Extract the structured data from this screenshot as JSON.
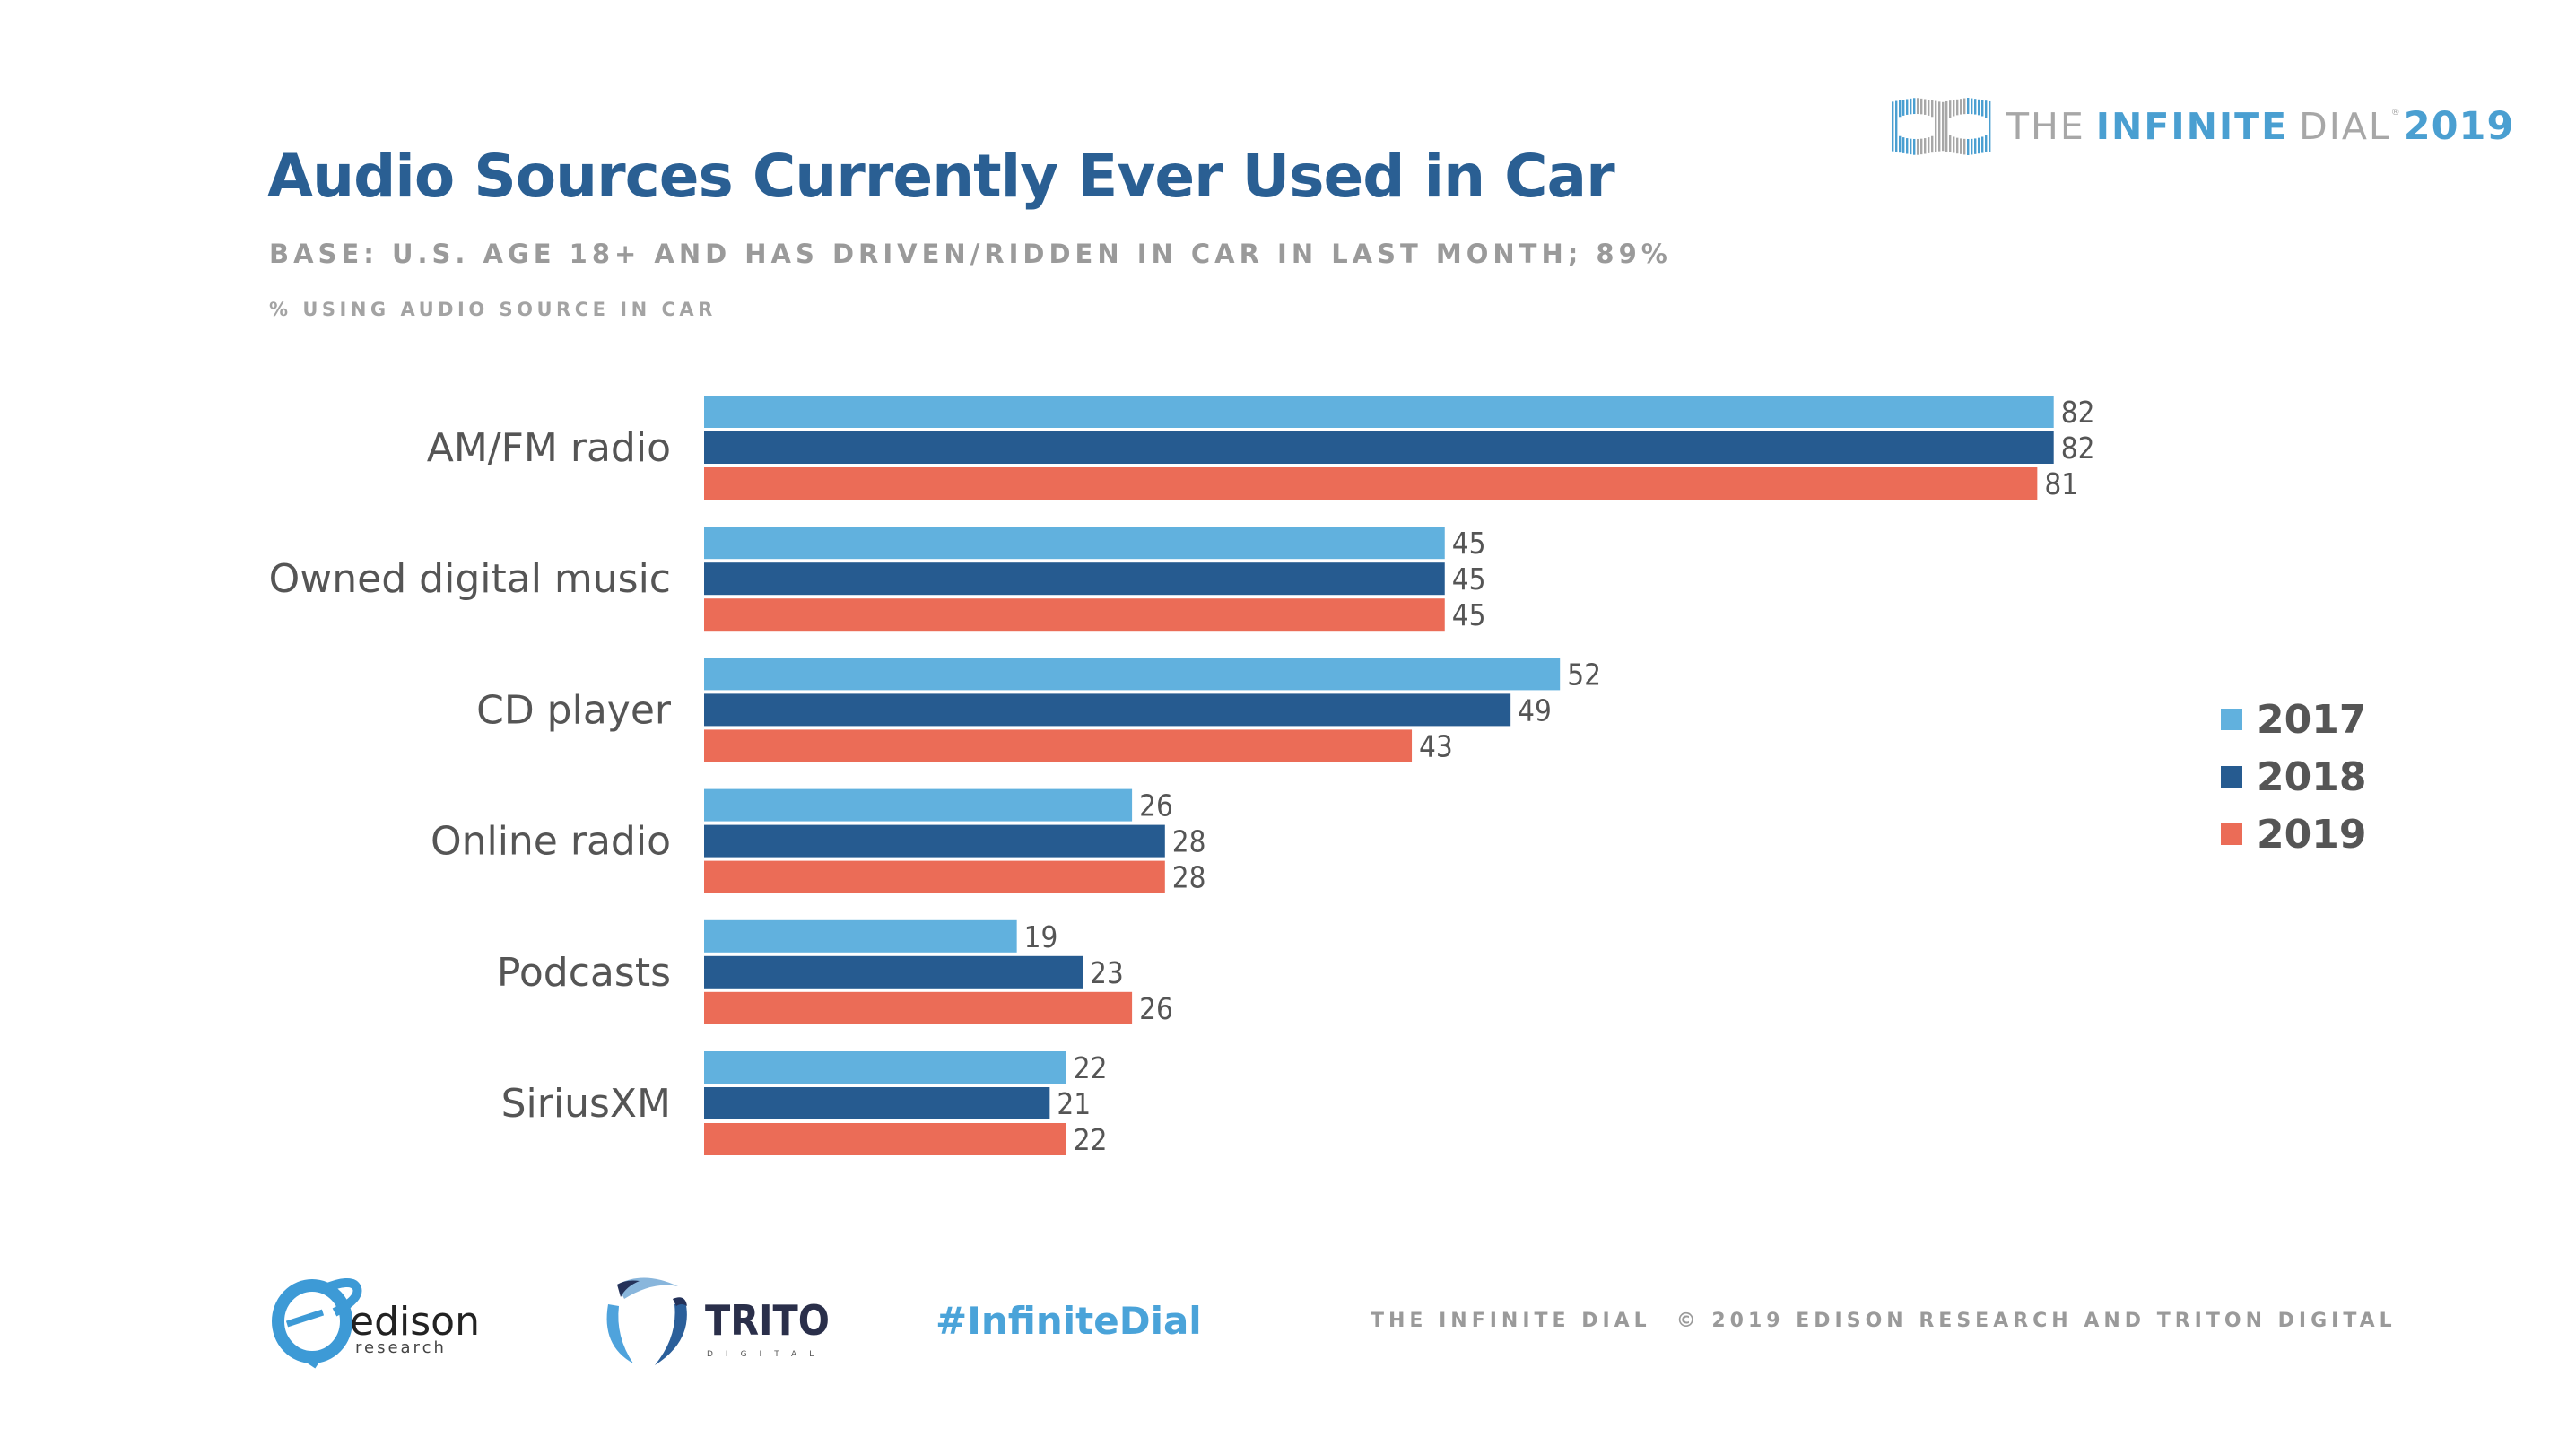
{
  "header": {
    "title": "Audio Sources Currently Ever Used in Car",
    "subtitle": "BASE: U.S. AGE 18+ AND HAS DRIVEN/RIDDEN IN CAR IN LAST MONTH; 89%",
    "unit_label": "% USING AUDIO SOURCE IN CAR"
  },
  "brand": {
    "icon": "infinity-dial-logo-icon",
    "the": "THE",
    "infinite": "INFINITE",
    "dial": "DIAL",
    "registered": "®",
    "year": "2019",
    "colors": {
      "blue": "#4a9fd1",
      "gray": "#a7a7a7"
    }
  },
  "chart_data": {
    "type": "bar",
    "orientation": "horizontal",
    "title": "Audio Sources Currently Ever Used in Car",
    "xlabel": "% using audio source in car",
    "ylabel": "",
    "xlim": [
      0,
      100
    ],
    "grid": false,
    "legend_position": "right",
    "data_labels": true,
    "categories": [
      "AM/FM radio",
      "Owned digital music",
      "CD player",
      "Online radio",
      "Podcasts",
      "SiriusXM"
    ],
    "series": [
      {
        "name": "2017",
        "color": "#61b1de",
        "values": [
          82,
          45,
          52,
          26,
          19,
          22
        ]
      },
      {
        "name": "2018",
        "color": "#265b90",
        "values": [
          82,
          45,
          49,
          28,
          23,
          21
        ]
      },
      {
        "name": "2019",
        "color": "#eb6c57",
        "values": [
          81,
          45,
          43,
          28,
          26,
          22
        ]
      }
    ]
  },
  "footer": {
    "edison_logo": {
      "icon": "edison-research-logo-icon",
      "name": "edison",
      "sub": "research"
    },
    "triton_logo": {
      "icon": "triton-digital-logo-icon",
      "name": "TRITON",
      "sub": "DIGITAL"
    },
    "hashtag": "#InfiniteDial",
    "left_text": "THE INFINITE DIAL",
    "copyright": "© 2019 EDISON RESEARCH AND TRITON DIGITAL"
  }
}
